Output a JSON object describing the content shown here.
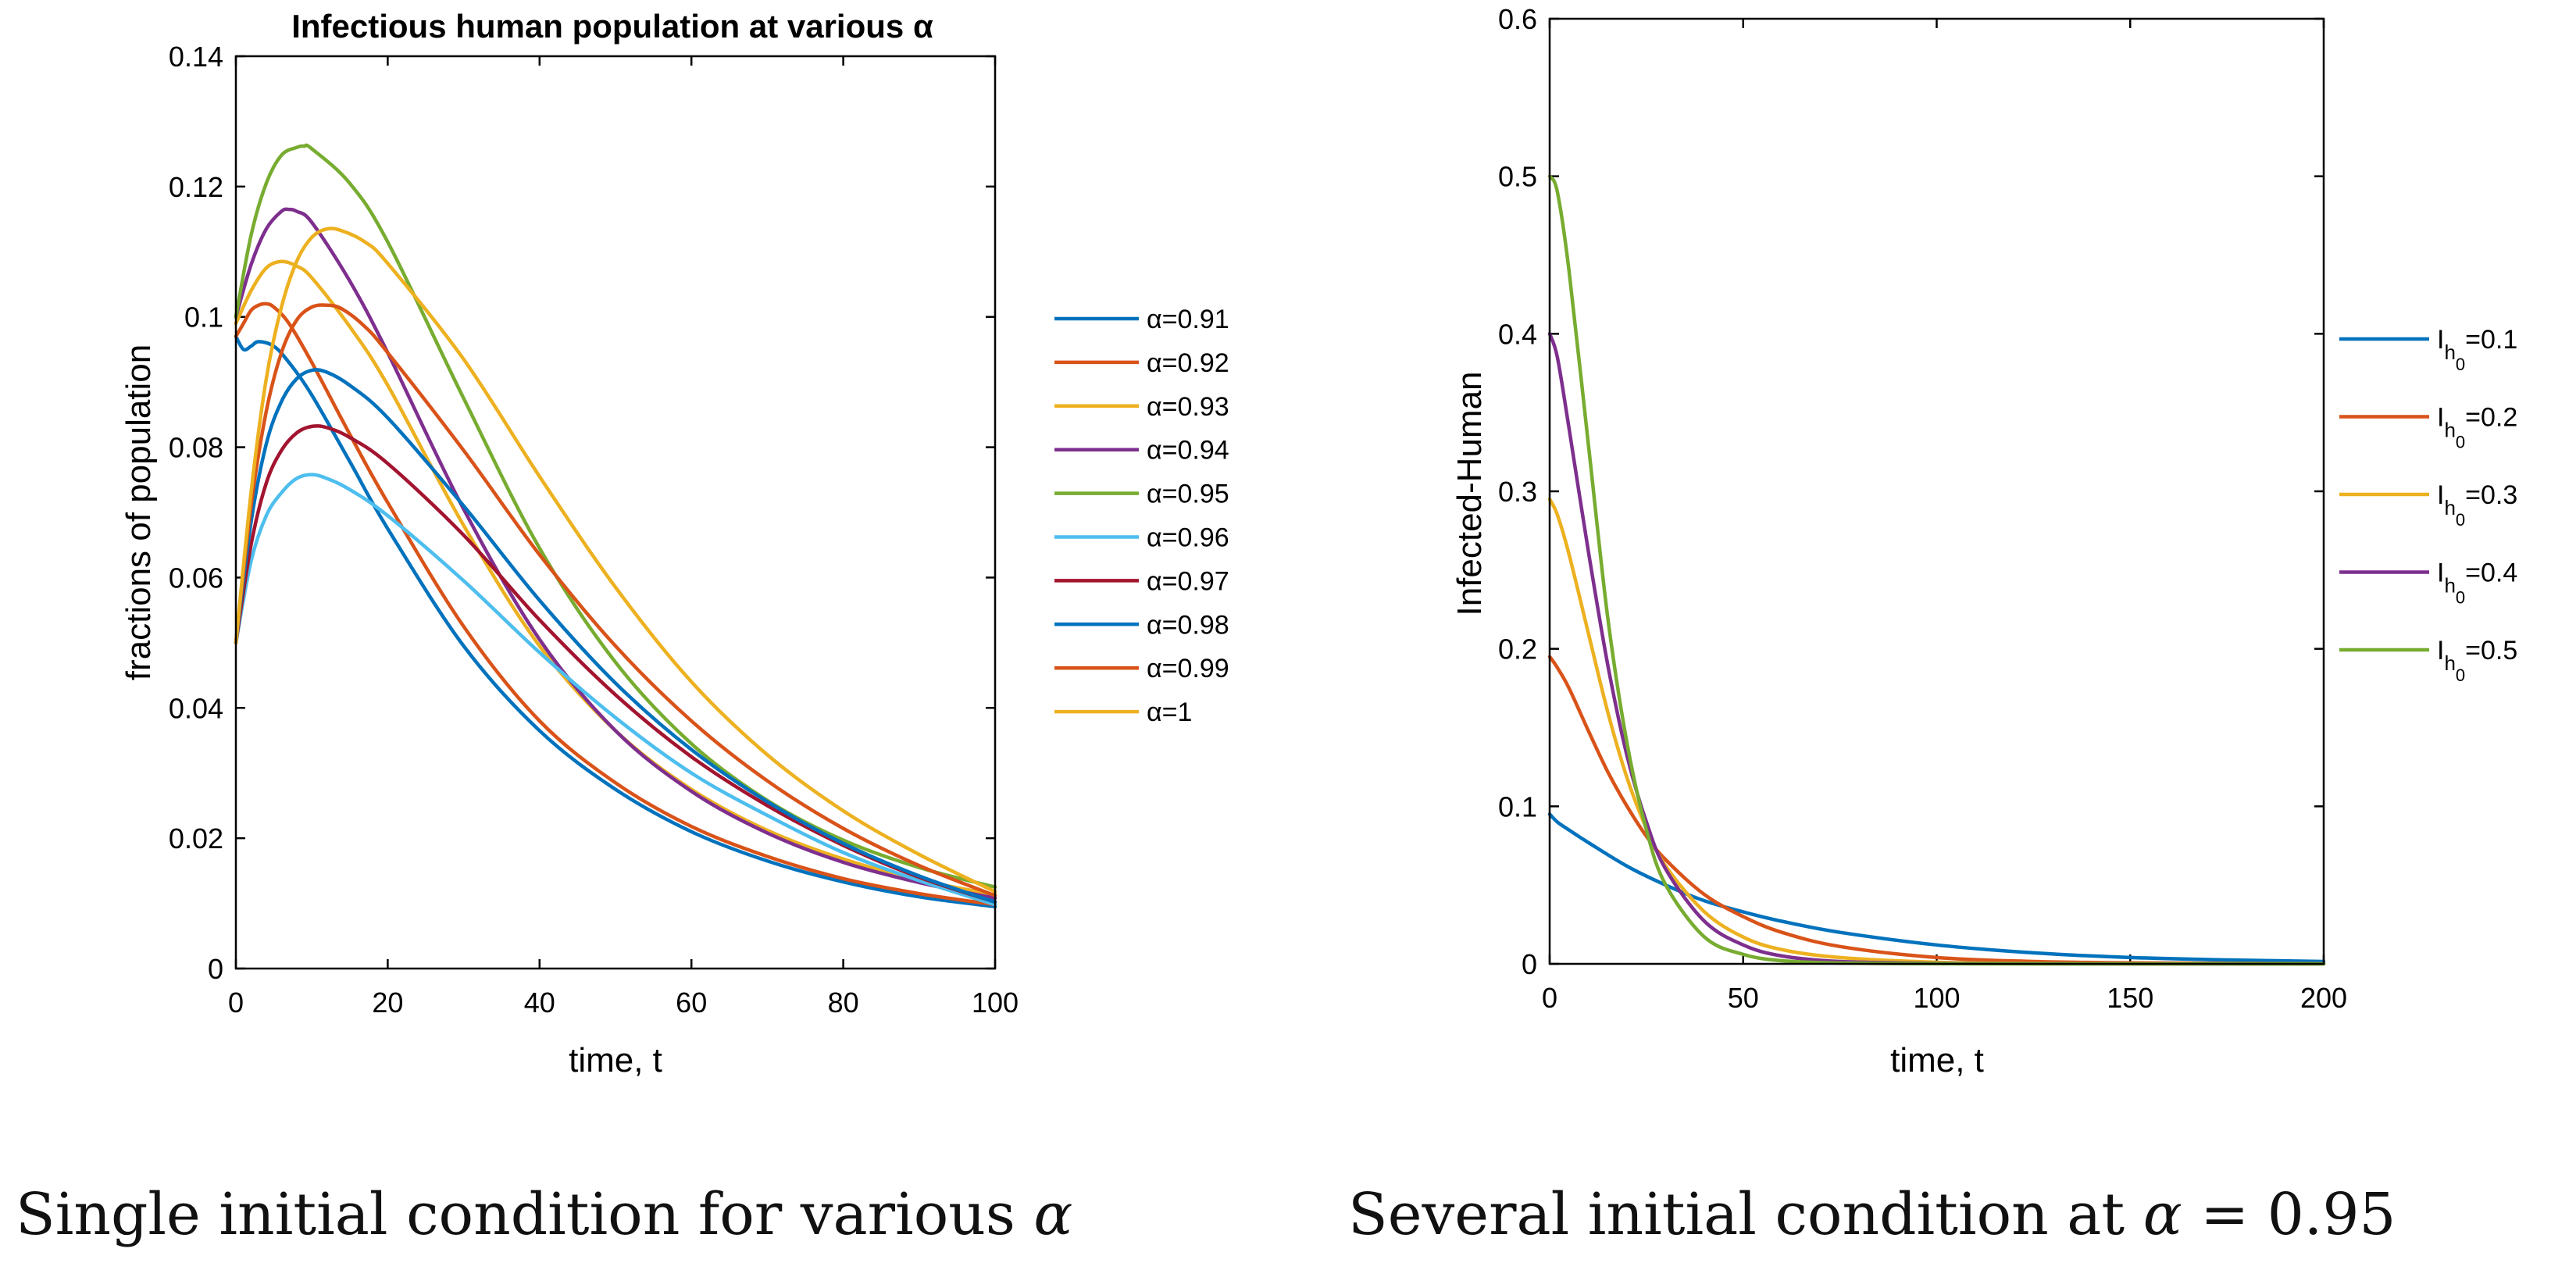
{
  "colors": {
    "blue": "#0072BD",
    "orange": "#D95319",
    "yellow": "#EDB120",
    "purple": "#7E2F8E",
    "green": "#77AC30",
    "cyan": "#4DBEEE",
    "darkred": "#A2142F",
    "axis": "#000000"
  },
  "chart_data": [
    {
      "type": "line",
      "title": "Infectious human population at various α",
      "xlabel": "time, t",
      "ylabel": "fractions of population",
      "xlim": [
        0,
        100
      ],
      "ylim": [
        0,
        0.14
      ],
      "xticks": [
        0,
        20,
        40,
        60,
        80,
        100
      ],
      "yticks": [
        0,
        0.02,
        0.04,
        0.06,
        0.08,
        0.1,
        0.12,
        0.14
      ],
      "xtick_labels": [
        "0",
        "20",
        "40",
        "60",
        "80",
        "100"
      ],
      "ytick_labels": [
        "0",
        "0.02",
        "0.04",
        "0.06",
        "0.08",
        "0.1",
        "0.12",
        "0.14"
      ],
      "legend_position": "outside-right",
      "series": [
        {
          "name": "α=0.91",
          "color": "blue",
          "x": [
            0,
            1,
            2,
            3,
            5,
            7,
            10,
            15,
            20,
            30,
            40,
            50,
            60,
            70,
            80,
            90,
            100
          ],
          "y": [
            0.097,
            0.095,
            0.0955,
            0.0962,
            0.0955,
            0.093,
            0.088,
            0.0778,
            0.0675,
            0.0495,
            0.0365,
            0.0275,
            0.021,
            0.0165,
            0.0133,
            0.011,
            0.0095
          ]
        },
        {
          "name": "α=0.92",
          "color": "orange",
          "x": [
            0,
            1,
            2,
            3,
            4,
            5,
            7,
            10,
            15,
            20,
            30,
            40,
            50,
            60,
            70,
            80,
            90,
            100
          ],
          "y": [
            0.097,
            0.099,
            0.101,
            0.1018,
            0.102,
            0.1015,
            0.099,
            0.093,
            0.082,
            0.0715,
            0.0525,
            0.038,
            0.0285,
            0.0218,
            0.0172,
            0.0138,
            0.0115,
            0.0098
          ]
        },
        {
          "name": "α=0.93",
          "color": "yellow",
          "x": [
            0,
            2,
            4,
            6,
            8,
            10,
            15,
            20,
            30,
            40,
            50,
            60,
            70,
            80,
            90,
            100
          ],
          "y": [
            0.099,
            0.104,
            0.1075,
            0.1085,
            0.1078,
            0.106,
            0.0985,
            0.0895,
            0.068,
            0.0495,
            0.0365,
            0.0275,
            0.0212,
            0.0168,
            0.0136,
            0.0113
          ]
        },
        {
          "name": "α=0.94",
          "color": "purple",
          "x": [
            0,
            2,
            4,
            6,
            7,
            8,
            10,
            15,
            20,
            30,
            40,
            50,
            60,
            70,
            80,
            90,
            100
          ],
          "y": [
            0.1,
            0.108,
            0.1135,
            0.1162,
            0.1165,
            0.1162,
            0.1145,
            0.1055,
            0.0945,
            0.0705,
            0.0505,
            0.0365,
            0.0272,
            0.0208,
            0.0163,
            0.0132,
            0.0108
          ]
        },
        {
          "name": "α=0.95",
          "color": "green",
          "x": [
            0,
            2,
            4,
            6,
            8,
            9,
            10,
            15,
            20,
            30,
            40,
            50,
            60,
            70,
            80,
            90,
            100
          ],
          "y": [
            0.1,
            0.1125,
            0.1205,
            0.1248,
            0.126,
            0.1262,
            0.1258,
            0.1205,
            0.1115,
            0.0875,
            0.0645,
            0.047,
            0.0345,
            0.0258,
            0.0197,
            0.0155,
            0.0125
          ]
        },
        {
          "name": "α=0.96",
          "color": "cyan",
          "x": [
            0,
            2,
            4,
            6,
            8,
            10,
            12,
            15,
            20,
            30,
            40,
            50,
            60,
            70,
            80,
            90,
            100
          ],
          "y": [
            0.05,
            0.0625,
            0.0695,
            0.073,
            0.0752,
            0.0758,
            0.0752,
            0.0735,
            0.0695,
            0.0595,
            0.0485,
            0.0385,
            0.03,
            0.0235,
            0.0178,
            0.0135,
            0.0098
          ]
        },
        {
          "name": "α=0.97",
          "color": "darkred",
          "x": [
            0,
            2,
            4,
            6,
            8,
            10,
            12,
            15,
            20,
            30,
            40,
            50,
            60,
            70,
            80,
            90,
            100
          ],
          "y": [
            0.05,
            0.065,
            0.0745,
            0.0795,
            0.0822,
            0.0832,
            0.083,
            0.0815,
            0.0775,
            0.0665,
            0.0535,
            0.042,
            0.0325,
            0.025,
            0.0189,
            0.014,
            0.0102
          ]
        },
        {
          "name": "α=0.98",
          "color": "blue",
          "x": [
            0,
            2,
            4,
            6,
            8,
            10,
            12,
            15,
            20,
            30,
            40,
            50,
            60,
            70,
            80,
            90,
            100
          ],
          "y": [
            0.05,
            0.0685,
            0.0805,
            0.087,
            0.0905,
            0.0918,
            0.0915,
            0.0895,
            0.0845,
            0.071,
            0.0565,
            0.0438,
            0.0336,
            0.0256,
            0.0192,
            0.0142,
            0.0102
          ]
        },
        {
          "name": "α=0.99",
          "color": "orange",
          "x": [
            0,
            2,
            4,
            6,
            8,
            10,
            12,
            14,
            17,
            20,
            30,
            40,
            50,
            60,
            70,
            80,
            90,
            100
          ],
          "y": [
            0.05,
            0.071,
            0.0855,
            0.0945,
            0.0995,
            0.1015,
            0.1018,
            0.1012,
            0.0985,
            0.0945,
            0.0795,
            0.0635,
            0.0495,
            0.038,
            0.0288,
            0.0215,
            0.0158,
            0.0112
          ]
        },
        {
          "name": "α=1",
          "color": "yellow",
          "x": [
            0,
            2,
            4,
            6,
            8,
            10,
            12,
            14,
            17,
            20,
            30,
            40,
            50,
            60,
            70,
            80,
            90,
            100
          ],
          "y": [
            0.05,
            0.073,
            0.0905,
            0.1015,
            0.1085,
            0.1122,
            0.1135,
            0.1132,
            0.1115,
            0.1082,
            0.0935,
            0.0755,
            0.0585,
            0.044,
            0.0328,
            0.0242,
            0.0175,
            0.0118
          ]
        }
      ]
    },
    {
      "type": "line",
      "title": "",
      "xlabel": "time, t",
      "ylabel": "Infected-Human",
      "xlim": [
        0,
        200
      ],
      "ylim": [
        0,
        0.6
      ],
      "xticks": [
        0,
        50,
        100,
        150,
        200
      ],
      "yticks": [
        0,
        0.1,
        0.2,
        0.3,
        0.4,
        0.5,
        0.6
      ],
      "xtick_labels": [
        "0",
        "50",
        "100",
        "150",
        "200"
      ],
      "ytick_labels": [
        "0",
        "0.1",
        "0.2",
        "0.3",
        "0.4",
        "0.5",
        "0.6"
      ],
      "legend_position": "outside-right",
      "series": [
        {
          "name": "I_h0 =0.1",
          "label_main": "I",
          "label_sub": "h",
          "label_subsub": "0",
          "label_tail": "=0.1",
          "color": "blue",
          "x": [
            0,
            2,
            5,
            10,
            20,
            30,
            40,
            50,
            60,
            75,
            100,
            125,
            150,
            175,
            200
          ],
          "y": [
            0.095,
            0.09,
            0.085,
            0.077,
            0.062,
            0.05,
            0.04,
            0.033,
            0.027,
            0.02,
            0.012,
            0.007,
            0.004,
            0.0025,
            0.0015
          ]
        },
        {
          "name": "I_h0 =0.2",
          "label_main": "I",
          "label_sub": "h",
          "label_subsub": "0",
          "label_tail": "=0.2",
          "color": "orange",
          "x": [
            0,
            2,
            5,
            10,
            15,
            20,
            25,
            30,
            40,
            50,
            60,
            75,
            100,
            125,
            150,
            200
          ],
          "y": [
            0.195,
            0.188,
            0.175,
            0.148,
            0.122,
            0.1,
            0.081,
            0.066,
            0.044,
            0.03,
            0.02,
            0.011,
            0.004,
            0.0015,
            0.0006,
            0.0001
          ]
        },
        {
          "name": "I_h0 =0.3",
          "label_main": "I",
          "label_sub": "h",
          "label_subsub": "0",
          "label_tail": "=0.3",
          "color": "yellow",
          "x": [
            0,
            2,
            5,
            10,
            15,
            20,
            25,
            30,
            40,
            50,
            60,
            75,
            100,
            125,
            150,
            200
          ],
          "y": [
            0.295,
            0.285,
            0.26,
            0.21,
            0.16,
            0.118,
            0.086,
            0.062,
            0.033,
            0.017,
            0.009,
            0.004,
            0.001,
            0.0003,
            0.0001,
            0
          ]
        },
        {
          "name": "I_h0 =0.4",
          "label_main": "I",
          "label_sub": "h",
          "label_subsub": "0",
          "label_tail": "=0.4",
          "color": "purple",
          "x": [
            0,
            2,
            5,
            10,
            15,
            20,
            25,
            30,
            40,
            50,
            60,
            75,
            100,
            125,
            150,
            200
          ],
          "y": [
            0.4,
            0.385,
            0.34,
            0.262,
            0.19,
            0.132,
            0.09,
            0.06,
            0.027,
            0.012,
            0.005,
            0.0015,
            0.0003,
            0.0001,
            0,
            0
          ]
        },
        {
          "name": "I_h0 =0.5",
          "label_main": "I",
          "label_sub": "h",
          "label_subsub": "0",
          "label_tail": "=0.5",
          "color": "green",
          "x": [
            0,
            2,
            5,
            10,
            15,
            20,
            25,
            30,
            40,
            50,
            60,
            75,
            100,
            125,
            150,
            200
          ],
          "y": [
            0.5,
            0.49,
            0.44,
            0.33,
            0.22,
            0.14,
            0.085,
            0.05,
            0.017,
            0.006,
            0.002,
            0.0005,
            0.0001,
            0,
            0,
            0
          ]
        }
      ]
    }
  ],
  "captions": {
    "left_text": "Single initial condition for various ",
    "left_symbol": "α",
    "right_text": "Several initial condition at ",
    "right_symbol": "α",
    "right_tail": " = 0.95"
  }
}
